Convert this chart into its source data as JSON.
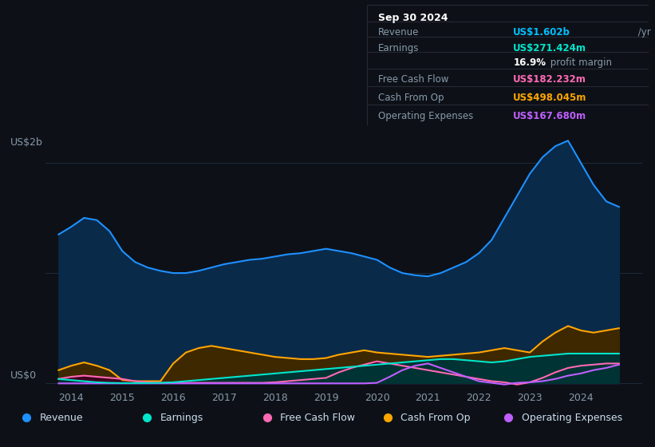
{
  "background_color": "#0d1117",
  "plot_bg_color": "#0d1117",
  "title_box": {
    "date": "Sep 30 2024",
    "rows": [
      {
        "label": "Revenue",
        "value": "US$1.602b /yr",
        "value_color": "#00bfff"
      },
      {
        "label": "Earnings",
        "value": "US$271.424m /yr",
        "value_color": "#00e5cc"
      },
      {
        "label": "",
        "value": "16.9% profit margin",
        "value_color": "#ffffff"
      },
      {
        "label": "Free Cash Flow",
        "value": "US$182.232m /yr",
        "value_color": "#ff69b4"
      },
      {
        "label": "Cash From Op",
        "value": "US$498.045m /yr",
        "value_color": "#ffa500"
      },
      {
        "label": "Operating Expenses",
        "value": "US$167.680m /yr",
        "value_color": "#bf5fff"
      }
    ]
  },
  "ylabel": "US$2b",
  "ylabel0": "US$0",
  "xlim": [
    2013.5,
    2025.2
  ],
  "ylim": [
    -50000000.0,
    2300000000.0
  ],
  "xticks": [
    2014,
    2015,
    2016,
    2017,
    2018,
    2019,
    2020,
    2021,
    2022,
    2023,
    2024
  ],
  "ytick_positions": [
    0,
    1000000000.0,
    2000000000.0
  ],
  "grid_color": "#1e2a3a",
  "series": {
    "revenue": {
      "color": "#1e90ff",
      "fill_color": "#0a2a4a",
      "x": [
        2013.75,
        2014.0,
        2014.25,
        2014.5,
        2014.75,
        2015.0,
        2015.25,
        2015.5,
        2015.75,
        2016.0,
        2016.25,
        2016.5,
        2016.75,
        2017.0,
        2017.25,
        2017.5,
        2017.75,
        2018.0,
        2018.25,
        2018.5,
        2018.75,
        2019.0,
        2019.25,
        2019.5,
        2019.75,
        2020.0,
        2020.25,
        2020.5,
        2020.75,
        2021.0,
        2021.25,
        2021.5,
        2021.75,
        2022.0,
        2022.25,
        2022.5,
        2022.75,
        2023.0,
        2023.25,
        2023.5,
        2023.75,
        2024.0,
        2024.25,
        2024.5,
        2024.75
      ],
      "y": [
        1350000000.0,
        1420000000.0,
        1500000000.0,
        1480000000.0,
        1380000000.0,
        1200000000.0,
        1100000000.0,
        1050000000.0,
        1020000000.0,
        1000000000.0,
        1000000000.0,
        1020000000.0,
        1050000000.0,
        1080000000.0,
        1100000000.0,
        1120000000.0,
        1130000000.0,
        1150000000.0,
        1170000000.0,
        1180000000.0,
        1200000000.0,
        1220000000.0,
        1200000000.0,
        1180000000.0,
        1150000000.0,
        1120000000.0,
        1050000000.0,
        1000000000.0,
        980000000.0,
        970000000.0,
        1000000000.0,
        1050000000.0,
        1100000000.0,
        1180000000.0,
        1300000000.0,
        1500000000.0,
        1700000000.0,
        1900000000.0,
        2050000000.0,
        2150000000.0,
        2200000000.0,
        2000000000.0,
        1800000000.0,
        1650000000.0,
        1600000000.0
      ]
    },
    "earnings": {
      "color": "#00e5cc",
      "fill_color": "#003333",
      "x": [
        2013.75,
        2014.0,
        2014.25,
        2014.5,
        2014.75,
        2015.0,
        2015.25,
        2015.5,
        2015.75,
        2016.0,
        2016.25,
        2016.5,
        2016.75,
        2017.0,
        2017.25,
        2017.5,
        2017.75,
        2018.0,
        2018.25,
        2018.5,
        2018.75,
        2019.0,
        2019.25,
        2019.5,
        2019.75,
        2020.0,
        2020.25,
        2020.5,
        2020.75,
        2021.0,
        2021.25,
        2021.5,
        2021.75,
        2022.0,
        2022.25,
        2022.5,
        2022.75,
        2023.0,
        2023.25,
        2023.5,
        2023.75,
        2024.0,
        2024.25,
        2024.5,
        2024.75
      ],
      "y": [
        40000000.0,
        30000000.0,
        20000000.0,
        10000000.0,
        5000000.0,
        3000000.0,
        3000000.0,
        3000000.0,
        5000000.0,
        10000000.0,
        20000000.0,
        30000000.0,
        40000000.0,
        50000000.0,
        60000000.0,
        70000000.0,
        80000000.0,
        90000000.0,
        100000000.0,
        110000000.0,
        120000000.0,
        130000000.0,
        140000000.0,
        150000000.0,
        160000000.0,
        170000000.0,
        180000000.0,
        190000000.0,
        200000000.0,
        210000000.0,
        220000000.0,
        220000000.0,
        210000000.0,
        200000000.0,
        190000000.0,
        200000000.0,
        220000000.0,
        240000000.0,
        250000000.0,
        260000000.0,
        270000000.0,
        270000000.0,
        270000000.0,
        270000000.0,
        270000000.0
      ]
    },
    "free_cash_flow": {
      "color": "#ff69b4",
      "fill_color": "#3d0020",
      "x": [
        2013.75,
        2014.0,
        2014.25,
        2014.5,
        2014.75,
        2015.0,
        2015.25,
        2015.5,
        2015.75,
        2016.0,
        2016.25,
        2016.5,
        2016.75,
        2017.0,
        2017.25,
        2017.5,
        2017.75,
        2018.0,
        2018.25,
        2018.5,
        2018.75,
        2019.0,
        2019.25,
        2019.5,
        2019.75,
        2020.0,
        2020.25,
        2020.5,
        2020.75,
        2021.0,
        2021.25,
        2021.5,
        2021.75,
        2022.0,
        2022.25,
        2022.5,
        2022.75,
        2023.0,
        2023.25,
        2023.5,
        2023.75,
        2024.0,
        2024.25,
        2024.5,
        2024.75
      ],
      "y": [
        40000000.0,
        60000000.0,
        70000000.0,
        60000000.0,
        50000000.0,
        40000000.0,
        20000000.0,
        10000000.0,
        5000000.0,
        5000000.0,
        5000000.0,
        5000000.0,
        5000000.0,
        5000000.0,
        5000000.0,
        5000000.0,
        5000000.0,
        10000000.0,
        20000000.0,
        30000000.0,
        40000000.0,
        50000000.0,
        100000000.0,
        140000000.0,
        170000000.0,
        200000000.0,
        180000000.0,
        160000000.0,
        140000000.0,
        120000000.0,
        100000000.0,
        80000000.0,
        60000000.0,
        40000000.0,
        20000000.0,
        10000000.0,
        -10000000.0,
        10000000.0,
        50000000.0,
        100000000.0,
        140000000.0,
        160000000.0,
        170000000.0,
        180000000.0,
        180000000.0
      ]
    },
    "cash_from_op": {
      "color": "#ffa500",
      "fill_color": "#3d2800",
      "x": [
        2013.75,
        2014.0,
        2014.25,
        2014.5,
        2014.75,
        2015.0,
        2015.25,
        2015.5,
        2015.75,
        2016.0,
        2016.25,
        2016.5,
        2016.75,
        2017.0,
        2017.25,
        2017.5,
        2017.75,
        2018.0,
        2018.25,
        2018.5,
        2018.75,
        2019.0,
        2019.25,
        2019.5,
        2019.75,
        2020.0,
        2020.25,
        2020.5,
        2020.75,
        2021.0,
        2021.25,
        2021.5,
        2021.75,
        2022.0,
        2022.25,
        2022.5,
        2022.75,
        2023.0,
        2023.25,
        2023.5,
        2023.75,
        2024.0,
        2024.25,
        2024.5,
        2024.75
      ],
      "y": [
        120000000.0,
        160000000.0,
        190000000.0,
        160000000.0,
        120000000.0,
        30000000.0,
        20000000.0,
        20000000.0,
        20000000.0,
        180000000.0,
        280000000.0,
        320000000.0,
        340000000.0,
        320000000.0,
        300000000.0,
        280000000.0,
        260000000.0,
        240000000.0,
        230000000.0,
        220000000.0,
        220000000.0,
        230000000.0,
        260000000.0,
        280000000.0,
        300000000.0,
        280000000.0,
        270000000.0,
        260000000.0,
        250000000.0,
        240000000.0,
        250000000.0,
        260000000.0,
        270000000.0,
        280000000.0,
        300000000.0,
        320000000.0,
        300000000.0,
        280000000.0,
        380000000.0,
        460000000.0,
        520000000.0,
        480000000.0,
        460000000.0,
        480000000.0,
        500000000.0
      ]
    },
    "operating_expenses": {
      "color": "#bf5fff",
      "fill_color": "#2a0040",
      "x": [
        2013.75,
        2014.0,
        2014.25,
        2014.5,
        2014.75,
        2015.0,
        2015.25,
        2015.5,
        2015.75,
        2016.0,
        2016.25,
        2016.5,
        2016.75,
        2017.0,
        2017.25,
        2017.5,
        2017.75,
        2018.0,
        2018.25,
        2018.5,
        2018.75,
        2019.0,
        2019.25,
        2019.5,
        2019.75,
        2020.0,
        2020.25,
        2020.5,
        2020.75,
        2021.0,
        2021.25,
        2021.5,
        2021.75,
        2022.0,
        2022.25,
        2022.5,
        2022.75,
        2023.0,
        2023.25,
        2023.5,
        2023.75,
        2024.0,
        2024.25,
        2024.5,
        2024.75
      ],
      "y": [
        0.0,
        0.0,
        0.0,
        0.0,
        0.0,
        0.0,
        0.0,
        0.0,
        0.0,
        0.0,
        0.0,
        0.0,
        0.0,
        0.0,
        0.0,
        0.0,
        0.0,
        0.0,
        0.0,
        0.0,
        0.0,
        0.0,
        0.0,
        0.0,
        0.0,
        5000000.0,
        60000000.0,
        120000000.0,
        160000000.0,
        180000000.0,
        140000000.0,
        100000000.0,
        60000000.0,
        20000000.0,
        5000000.0,
        -10000000.0,
        5000000.0,
        10000000.0,
        20000000.0,
        40000000.0,
        70000000.0,
        90000000.0,
        120000000.0,
        140000000.0,
        170000000.0
      ]
    }
  },
  "legend": [
    {
      "label": "Revenue",
      "color": "#1e90ff"
    },
    {
      "label": "Earnings",
      "color": "#00e5cc"
    },
    {
      "label": "Free Cash Flow",
      "color": "#ff69b4"
    },
    {
      "label": "Cash From Op",
      "color": "#ffa500"
    },
    {
      "label": "Operating Expenses",
      "color": "#bf5fff"
    }
  ]
}
